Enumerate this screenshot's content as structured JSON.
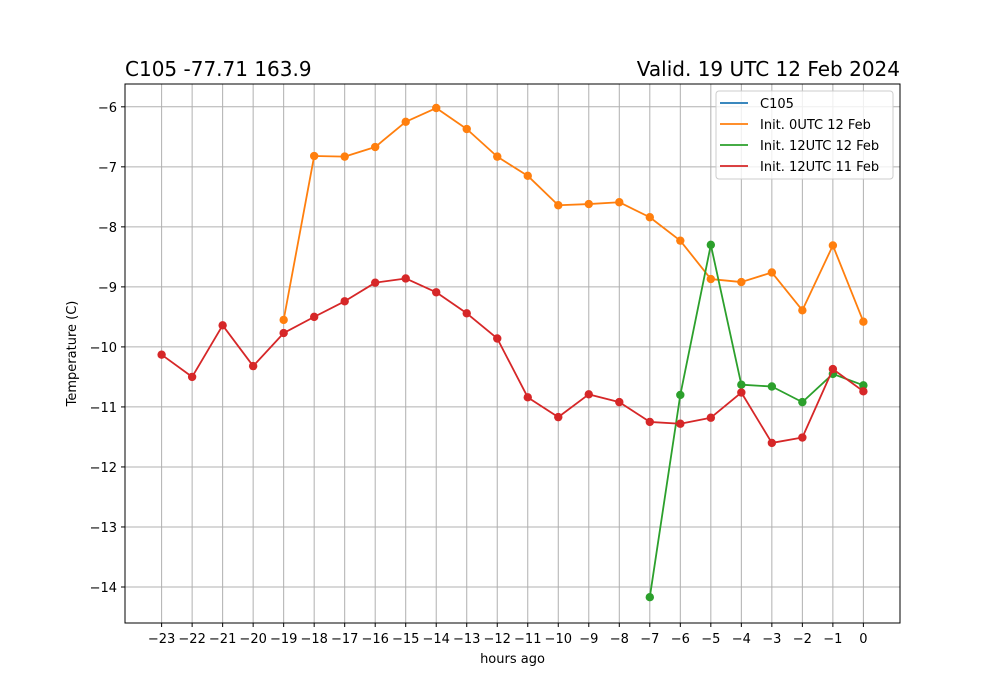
{
  "chart_data": {
    "type": "line",
    "title_left": "C105 -77.71 163.9",
    "title_right": "Valid. 19 UTC 12 Feb 2024",
    "xlabel": "hours ago",
    "ylabel": "Temperature (C)",
    "xlim": [
      -24.2,
      1.2
    ],
    "ylim": [
      -14.6,
      -5.62
    ],
    "x_ticks": [
      -23,
      -22,
      -21,
      -20,
      -19,
      -18,
      -17,
      -16,
      -15,
      -14,
      -13,
      -12,
      -11,
      -10,
      -9,
      -8,
      -7,
      -6,
      -5,
      -4,
      -3,
      -2,
      -1,
      0
    ],
    "x_tick_labels": [
      "−23",
      "−22",
      "−21",
      "−20",
      "−19",
      "−18",
      "−17",
      "−16",
      "−15",
      "−14",
      "−13",
      "−12",
      "−11",
      "−10",
      "−9",
      "−8",
      "−7",
      "−6",
      "−5",
      "−4",
      "−3",
      "−2",
      "−1",
      "0"
    ],
    "y_ticks": [
      -14,
      -13,
      -12,
      -11,
      -10,
      -9,
      -8,
      -7,
      -6
    ],
    "y_tick_labels": [
      "−14",
      "−13",
      "−12",
      "−11",
      "−10",
      "−9",
      "−8",
      "−7",
      "−6"
    ],
    "grid": true,
    "legend_position": "top-right",
    "series": [
      {
        "name": "C105",
        "color": "#1f77b4",
        "x": [],
        "y": []
      },
      {
        "name": "Init. 0UTC 12 Feb",
        "color": "#ff7f0e",
        "x": [
          -19,
          -18,
          -17,
          -16,
          -15,
          -14,
          -13,
          -12,
          -11,
          -10,
          -9,
          -8,
          -7,
          -6,
          -5,
          -4,
          -3,
          -2,
          -1,
          0
        ],
        "y": [
          -9.55,
          -6.82,
          -6.83,
          -6.67,
          -6.25,
          -6.02,
          -6.37,
          -6.83,
          -7.15,
          -7.64,
          -7.62,
          -7.59,
          -7.84,
          -8.23,
          -8.87,
          -8.92,
          -8.76,
          -9.39,
          -8.31,
          -9.58
        ]
      },
      {
        "name": "Init. 12UTC 12 Feb",
        "color": "#2ca02c",
        "x": [
          -7,
          -6,
          -5,
          -4,
          -3,
          -2,
          -1,
          0
        ],
        "y": [
          -14.17,
          -10.8,
          -8.3,
          -10.63,
          -10.66,
          -10.92,
          -10.45,
          -10.64
        ]
      },
      {
        "name": "Init. 12UTC 11 Feb",
        "color": "#d62728",
        "x": [
          -23,
          -22,
          -21,
          -20,
          -19,
          -18,
          -17,
          -16,
          -15,
          -14,
          -13,
          -12,
          -11,
          -10,
          -9,
          -8,
          -7,
          -6,
          -5,
          -4,
          -3,
          -2,
          -1,
          0
        ],
        "y": [
          -10.13,
          -10.5,
          -9.64,
          -10.32,
          -9.77,
          -9.5,
          -9.24,
          -8.93,
          -8.86,
          -9.09,
          -9.44,
          -9.86,
          -10.84,
          -11.17,
          -10.79,
          -10.92,
          -11.25,
          -11.28,
          -11.18,
          -10.76,
          -11.6,
          -11.51,
          -10.37,
          -10.74
        ]
      }
    ]
  }
}
